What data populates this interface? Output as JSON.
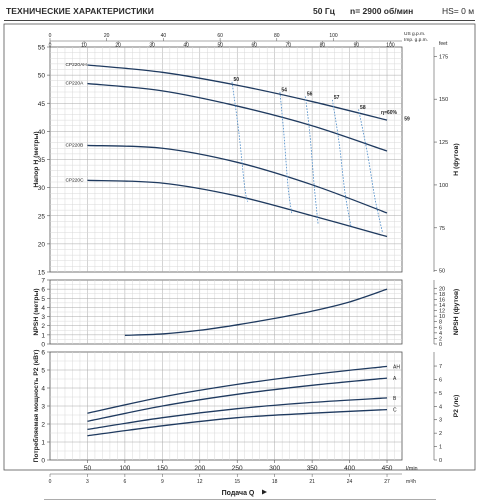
{
  "header": {
    "title": "ТЕХНИЧЕСКИЕ ХАРАКТЕРИСТИКИ",
    "frequency": "50 Гц",
    "speed": "n= 2900 об/мин",
    "hs": "HS= 0 м"
  },
  "colors": {
    "curve": "#1f3a5f",
    "efficiency": "#4a8ac8",
    "grid_minor": "#d9d9d9",
    "grid_major": "#a8a8a8",
    "frame": "#555555"
  },
  "chart_data": [
    {
      "type": "line",
      "id": "head",
      "ylabel": "Напор H (метры)",
      "ylabel_right": "H (футов)",
      "xlabel": "Подача Q",
      "x_unit": "l/min",
      "ylim": [
        15,
        55
      ],
      "yticks": [
        15,
        20,
        25,
        30,
        35,
        40,
        45,
        50,
        55
      ],
      "xlim": [
        0,
        470
      ],
      "grid": true,
      "right_axis": {
        "unit": "feet",
        "ticks": [
          50,
          75,
          100,
          125,
          150,
          175
        ]
      },
      "top_axis": {
        "us_label": "US g.p.m.",
        "imp_label": "Imp. g.p.m.",
        "us_ticks": [
          0,
          20,
          40,
          60,
          80,
          100
        ],
        "imp_ticks": [
          0,
          10,
          20,
          30,
          40,
          50,
          60,
          70,
          80,
          90,
          100
        ]
      },
      "series": [
        {
          "name": "CP220AH",
          "x": [
            50,
            150,
            250,
            350,
            450
          ],
          "y": [
            51.8,
            50.5,
            48.2,
            45.3,
            42.0
          ]
        },
        {
          "name": "CP220A",
          "x": [
            50,
            150,
            250,
            350,
            450
          ],
          "y": [
            48.5,
            47.2,
            44.5,
            41.0,
            36.5
          ]
        },
        {
          "name": "CP220B",
          "x": [
            50,
            150,
            250,
            350,
            450
          ],
          "y": [
            37.5,
            37.0,
            34.5,
            30.5,
            25.5
          ]
        },
        {
          "name": "CP220C",
          "x": [
            50,
            150,
            250,
            350,
            450
          ],
          "y": [
            31.3,
            30.8,
            28.5,
            25.0,
            21.3
          ]
        }
      ],
      "efficiency_labels": [
        {
          "text": "50",
          "x": 245,
          "y": 49.0
        },
        {
          "text": "54",
          "x": 309,
          "y": 47.1
        },
        {
          "text": "56",
          "x": 343,
          "y": 46.4
        },
        {
          "text": "57",
          "x": 379,
          "y": 45.8
        },
        {
          "text": "58",
          "x": 414,
          "y": 44.0
        },
        {
          "text": "η=60%",
          "x": 442,
          "y": 43.1
        },
        {
          "text": "59",
          "x": 473,
          "y": 41.9
        }
      ],
      "efficiency_lines": [
        {
          "x": [
            243,
            252,
            260,
            264
          ],
          "y": [
            48.8,
            40.0,
            30.0,
            27.5
          ]
        },
        {
          "x": [
            307,
            312,
            318,
            323
          ],
          "y": [
            47.0,
            40.0,
            30.0,
            25.3
          ]
        },
        {
          "x": [
            341,
            347,
            353,
            358
          ],
          "y": [
            46.2,
            39.5,
            30.0,
            23.5
          ]
        },
        {
          "x": [
            377,
            386,
            394,
            402
          ],
          "y": [
            45.6,
            38.0,
            29.0,
            23.0
          ]
        },
        {
          "x": [
            412,
            424,
            434,
            444
          ],
          "y": [
            43.9,
            36.0,
            28.0,
            22.0
          ]
        }
      ]
    },
    {
      "type": "line",
      "id": "npsh",
      "ylabel": "NPSH (метры)",
      "ylabel_right": "NPSH (футов)",
      "ylim": [
        0,
        7
      ],
      "yticks": [
        0,
        1,
        2,
        3,
        4,
        5,
        6,
        7
      ],
      "xlim": [
        0,
        470
      ],
      "grid": true,
      "right_axis": {
        "unit": "feet",
        "ticks": [
          0,
          2,
          4,
          6,
          8,
          10,
          12,
          14,
          16,
          18,
          20
        ]
      },
      "series": [
        {
          "name": "NPSH",
          "x": [
            100,
            150,
            200,
            250,
            300,
            350,
            400,
            450
          ],
          "y": [
            0.95,
            1.1,
            1.5,
            2.1,
            2.8,
            3.6,
            4.6,
            6.0
          ]
        }
      ]
    },
    {
      "type": "line",
      "id": "power",
      "ylabel": "Потребляемая мощность P2 (кВт)",
      "ylabel_right": "P2 (лс)",
      "ylim": [
        0,
        6
      ],
      "yticks": [
        0,
        1,
        2,
        3,
        4,
        5,
        6
      ],
      "xlim": [
        0,
        470
      ],
      "grid": true,
      "right_axis": {
        "unit": "hp",
        "ticks": [
          0,
          1,
          2,
          3,
          4,
          5,
          6,
          7
        ]
      },
      "x_ticks_lmin": [
        0,
        50,
        100,
        150,
        200,
        250,
        300,
        350,
        400,
        450
      ],
      "x_unit_lmin": "l/min",
      "x_ticks_m3h": [
        0,
        3,
        6,
        9,
        12,
        15,
        18,
        21,
        24,
        27
      ],
      "x_unit_m3h": "m³/h",
      "series": [
        {
          "name": "AH",
          "x": [
            50,
            150,
            250,
            350,
            450
          ],
          "y": [
            2.6,
            3.5,
            4.2,
            4.75,
            5.2
          ]
        },
        {
          "name": "A",
          "x": [
            50,
            150,
            250,
            350,
            450
          ],
          "y": [
            2.15,
            3.0,
            3.65,
            4.15,
            4.55
          ]
        },
        {
          "name": "B",
          "x": [
            50,
            150,
            250,
            350,
            450
          ],
          "y": [
            1.7,
            2.35,
            2.85,
            3.2,
            3.45
          ]
        },
        {
          "name": "C",
          "x": [
            50,
            150,
            250,
            350,
            450
          ],
          "y": [
            1.35,
            1.9,
            2.35,
            2.6,
            2.8
          ]
        }
      ]
    }
  ]
}
